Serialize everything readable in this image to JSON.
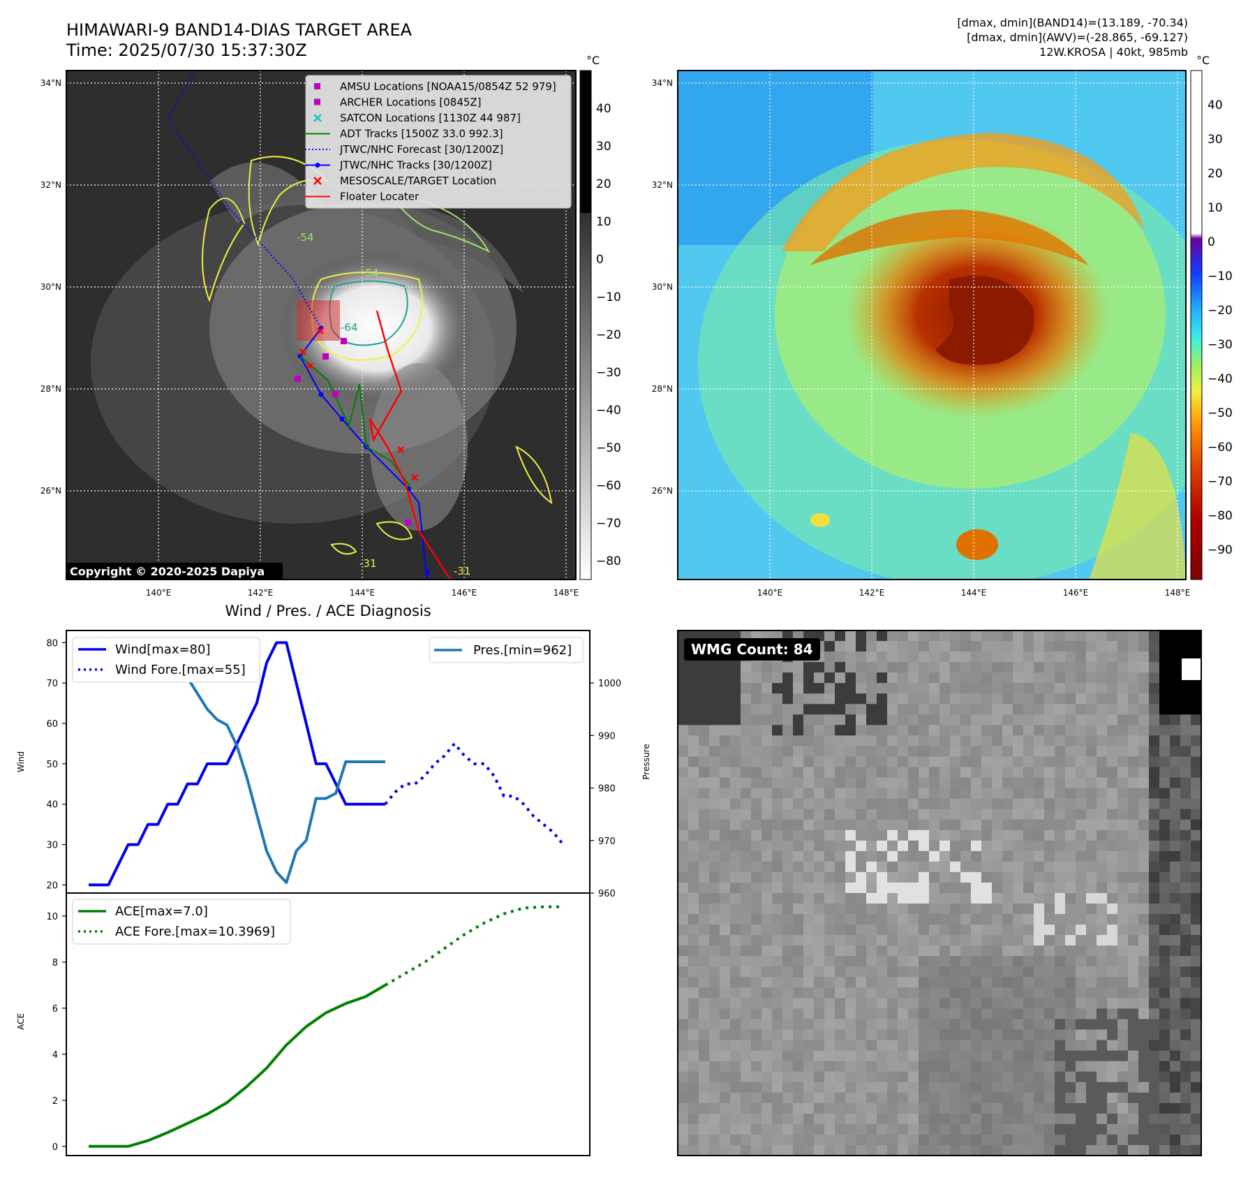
{
  "header": {
    "title": "HIMAWARI-9 BAND14-DIAS TARGET AREA",
    "time": "Time: 2025/07/30 15:37:30Z",
    "info": [
      "[dmax, dmin](BAND14)=(13.189, -70.34)",
      "[dmax, dmin](AWV)=(-28.865, -69.127)",
      "12W.KROSA | 40kt, 985mb"
    ]
  },
  "map": {
    "lat_labels": [
      "34°N",
      "32°N",
      "30°N",
      "28°N",
      "26°N"
    ],
    "lon_labels": [
      "140°E",
      "142°E",
      "144°E",
      "146°E",
      "148°E"
    ],
    "copyright": "Copyright © 2020-2025 Dapiya",
    "contour_labels": [
      "-54",
      "-54",
      "-64",
      "-31",
      "-31",
      "-31"
    ],
    "legend": [
      {
        "label": "AMSU Locations [NOAA15/0854Z 52 979]",
        "symbol": "square",
        "color": "#c000c0"
      },
      {
        "label": "ARCHER Locations [0845Z]",
        "symbol": "square",
        "color": "#c000c0"
      },
      {
        "label": "SATCON Locations [1130Z 44 987]",
        "symbol": "x",
        "color": "#20c0c0"
      },
      {
        "label": "ADT Tracks [1500Z 33.0 992.3]",
        "symbol": "line",
        "color": "#008000"
      },
      {
        "label": "JTWC/NHC Forecast [30/1200Z]",
        "symbol": "dotted",
        "color": "#0000ff"
      },
      {
        "label": "JTWC/NHC Tracks [30/1200Z]",
        "symbol": "line-dot",
        "color": "#0000ff"
      },
      {
        "label": "MESOSCALE/TARGET Location",
        "symbol": "x",
        "color": "#ff0000"
      },
      {
        "label": "Floater Locater",
        "symbol": "line",
        "color": "#ff0000"
      }
    ]
  },
  "colorbar_gray": {
    "unit": "°C",
    "ticks": [
      "40",
      "30",
      "20",
      "10",
      "0",
      "−10",
      "−20",
      "−30",
      "−40",
      "−50",
      "−60",
      "−70",
      "−80"
    ]
  },
  "colorbar_awv": {
    "unit": "°C",
    "ticks": [
      "40",
      "30",
      "20",
      "10",
      "0",
      "−10",
      "−20",
      "−30",
      "−40",
      "−50",
      "−60",
      "−70",
      "−80",
      "−90"
    ]
  },
  "wmg": {
    "label": "WMG Count: 84"
  },
  "colors": {
    "wind": "#0000ee",
    "pressure": "#1f77b4",
    "ace": "#008000"
  },
  "chart_data": [
    {
      "type": "line",
      "title": "Wind / Pres. / ACE Diagnosis",
      "ylabel": "Wind",
      "ylabel_right": "Pressure",
      "ylim": [
        18,
        83
      ],
      "ylim_right": [
        960,
        1010
      ],
      "x_range": [
        0,
        48
      ],
      "yticks": [
        "20",
        "30",
        "40",
        "50",
        "60",
        "70",
        "80"
      ],
      "yticks_right": [
        "960",
        "970",
        "980",
        "990",
        "1000"
      ],
      "legend_left": [
        "Wind[max=80]",
        "Wind Fore.[max=55]"
      ],
      "legend_right": [
        "Pres.[min=962]"
      ],
      "series": [
        {
          "name": "Wind[max=80]",
          "style": "solid",
          "color": "#0000ee",
          "points": [
            [
              0,
              20
            ],
            [
              2,
              20
            ],
            [
              3,
              25
            ],
            [
              4,
              30
            ],
            [
              5,
              30
            ],
            [
              6,
              35
            ],
            [
              7,
              35
            ],
            [
              8,
              40
            ],
            [
              9,
              40
            ],
            [
              10,
              45
            ],
            [
              11,
              45
            ],
            [
              12,
              50
            ],
            [
              13,
              50
            ],
            [
              14,
              50
            ],
            [
              15,
              55
            ],
            [
              16,
              60
            ],
            [
              17,
              65
            ],
            [
              18,
              75
            ],
            [
              19,
              80
            ],
            [
              20,
              80
            ],
            [
              21,
              70
            ],
            [
              22,
              60
            ],
            [
              23,
              50
            ],
            [
              24,
              50
            ],
            [
              25,
              45
            ],
            [
              26,
              40
            ],
            [
              27,
              40
            ],
            [
              28,
              40
            ],
            [
              29,
              40
            ],
            [
              30,
              40
            ]
          ]
        },
        {
          "name": "Wind Fore.[max=55]",
          "style": "dotted",
          "color": "#0000ee",
          "points": [
            [
              30,
              40
            ],
            [
              31,
              43
            ],
            [
              32,
              45
            ],
            [
              33,
              45
            ],
            [
              34,
              47
            ],
            [
              35,
              50
            ],
            [
              36,
              52
            ],
            [
              37,
              55
            ],
            [
              38,
              52
            ],
            [
              39,
              50
            ],
            [
              40,
              50
            ],
            [
              41,
              47
            ],
            [
              42,
              42
            ],
            [
              43,
              42
            ],
            [
              44,
              40
            ],
            [
              45,
              37
            ],
            [
              46,
              35
            ],
            [
              47,
              33
            ],
            [
              48,
              30
            ]
          ]
        },
        {
          "name": "Pres.[min=962]",
          "style": "solid",
          "color": "#1f77b4",
          "axis": "right",
          "points": [
            [
              0,
              1008
            ],
            [
              2,
              1008
            ],
            [
              3,
              1006
            ],
            [
              4,
              1006
            ],
            [
              5,
              1005
            ],
            [
              6,
              1004
            ],
            [
              7,
              1003
            ],
            [
              8,
              1002
            ],
            [
              9,
              1001
            ],
            [
              10,
              1001
            ],
            [
              11,
              998
            ],
            [
              12,
              995
            ],
            [
              13,
              993
            ],
            [
              14,
              992
            ],
            [
              15,
              988
            ],
            [
              16,
              982
            ],
            [
              17,
              975
            ],
            [
              18,
              968
            ],
            [
              19,
              964
            ],
            [
              20,
              962
            ],
            [
              21,
              968
            ],
            [
              22,
              970
            ],
            [
              23,
              978
            ],
            [
              24,
              978
            ],
            [
              25,
              979
            ],
            [
              26,
              985
            ],
            [
              27,
              985
            ],
            [
              28,
              985
            ],
            [
              29,
              985
            ],
            [
              30,
              985
            ]
          ]
        }
      ]
    },
    {
      "type": "line",
      "ylabel": "ACE",
      "ylim": [
        -0.4,
        11
      ],
      "x_range": [
        0,
        48
      ],
      "yticks": [
        "0",
        "2",
        "4",
        "6",
        "8",
        "10"
      ],
      "legend": [
        "ACE[max=7.0]",
        "ACE Fore.[max=10.3969]"
      ],
      "series": [
        {
          "name": "ACE[max=7.0]",
          "style": "solid",
          "color": "#008000",
          "points": [
            [
              0,
              0
            ],
            [
              2,
              0
            ],
            [
              4,
              0
            ],
            [
              6,
              0.25
            ],
            [
              8,
              0.6
            ],
            [
              10,
              1.0
            ],
            [
              12,
              1.4
            ],
            [
              14,
              1.9
            ],
            [
              16,
              2.6
            ],
            [
              18,
              3.4
            ],
            [
              20,
              4.4
            ],
            [
              22,
              5.2
            ],
            [
              24,
              5.8
            ],
            [
              26,
              6.2
            ],
            [
              28,
              6.5
            ],
            [
              30,
              7.0
            ]
          ]
        },
        {
          "name": "ACE Fore.[max=10.3969]",
          "style": "dotted",
          "color": "#008000",
          "points": [
            [
              30,
              7.0
            ],
            [
              32,
              7.5
            ],
            [
              34,
              8.0
            ],
            [
              36,
              8.6
            ],
            [
              38,
              9.2
            ],
            [
              40,
              9.7
            ],
            [
              42,
              10.1
            ],
            [
              44,
              10.35
            ],
            [
              46,
              10.4
            ],
            [
              48,
              10.4
            ]
          ]
        }
      ]
    }
  ]
}
